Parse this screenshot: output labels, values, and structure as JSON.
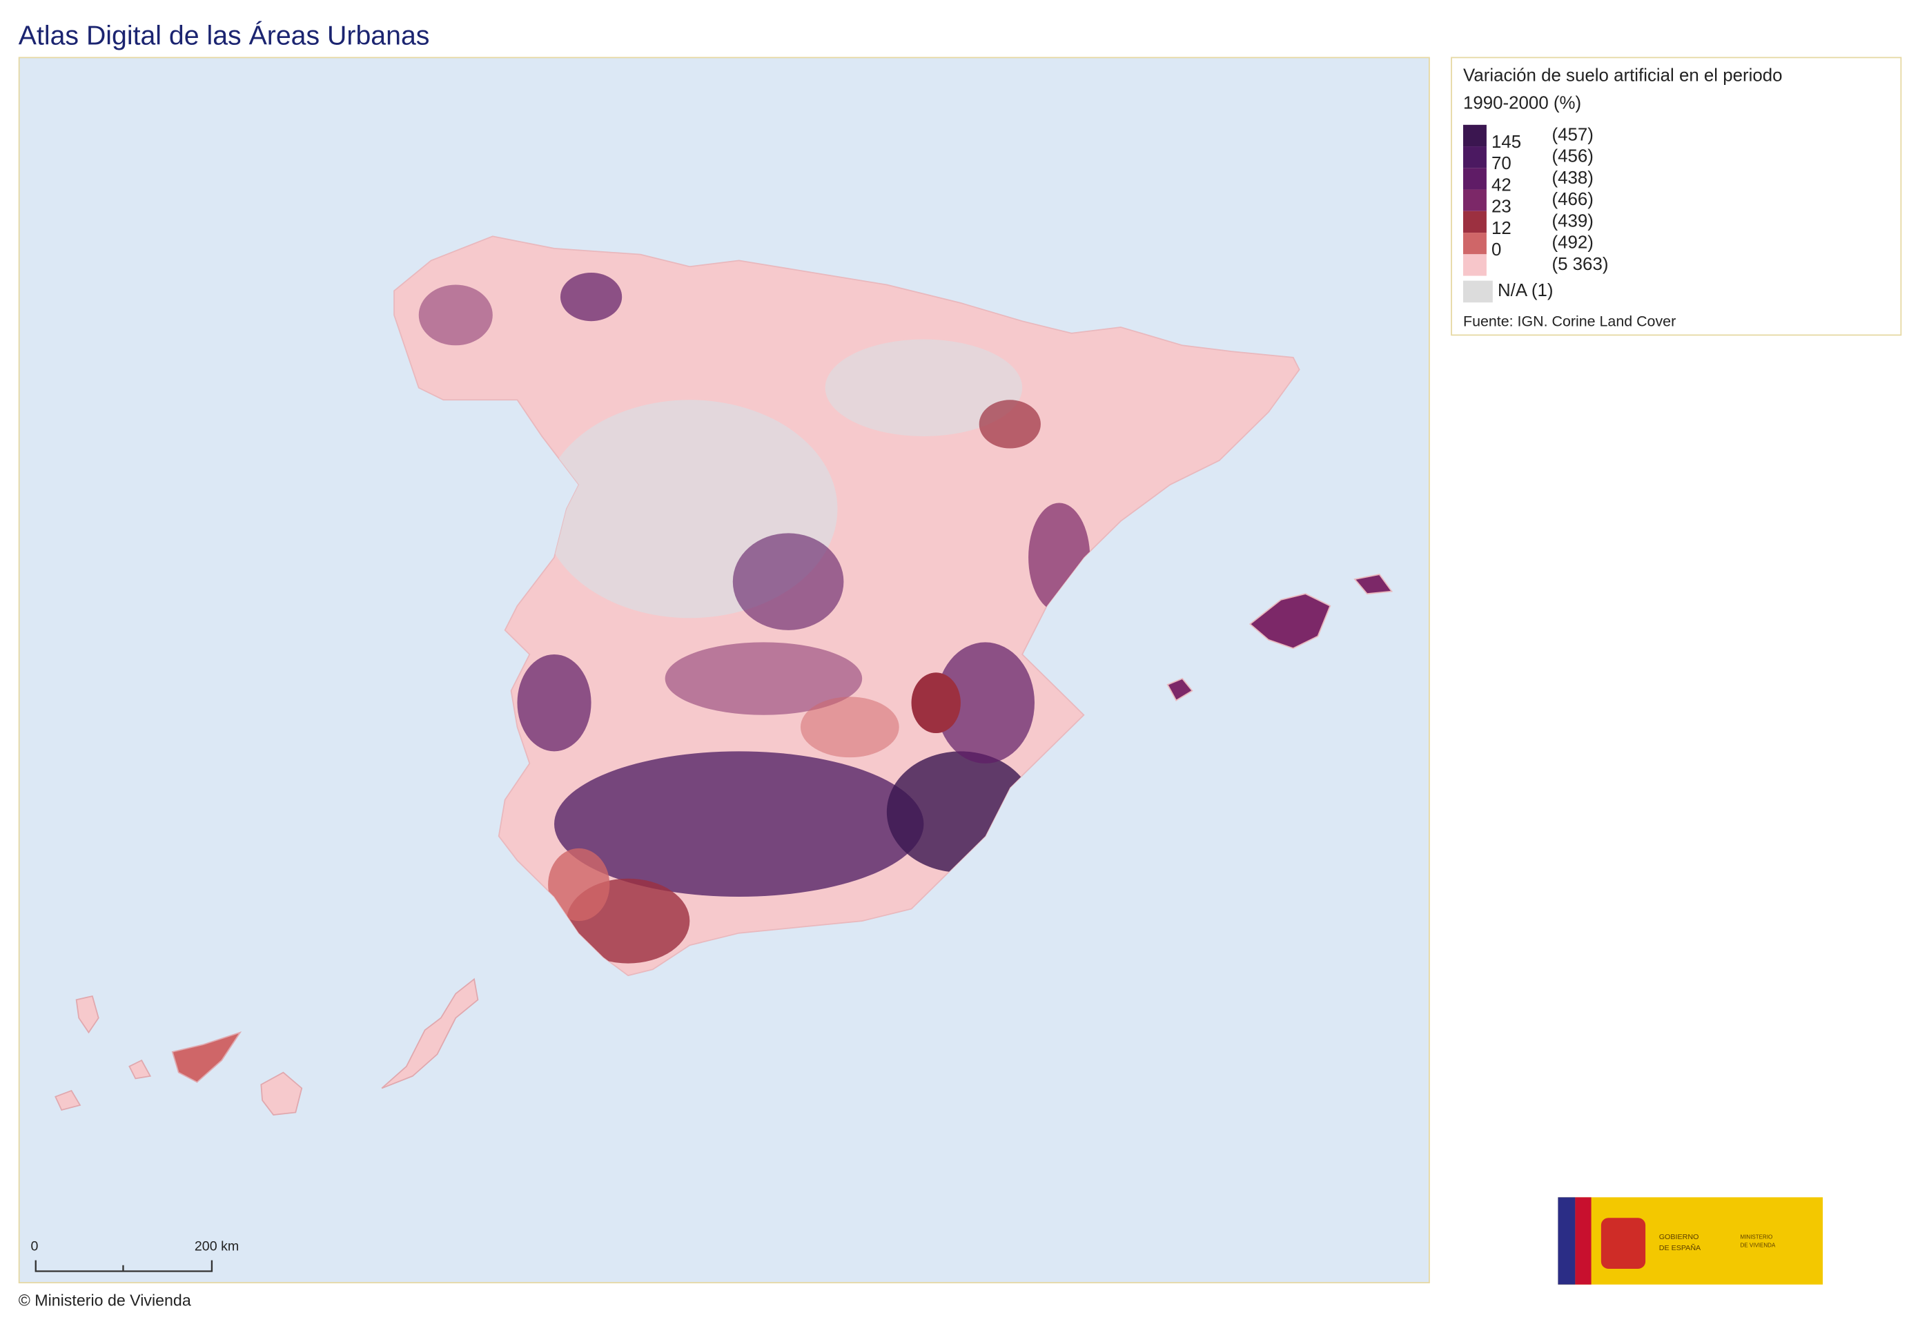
{
  "header": {
    "title": "Atlas Digital de las Áreas Urbanas"
  },
  "legend": {
    "title_lines": [
      "Variación de suelo artificial en el periodo",
      "1990-2000 (%)"
    ],
    "breaks": [
      "145",
      "70",
      "42",
      "23",
      "12",
      "0"
    ],
    "classes": [
      {
        "color": "#3b1650",
        "count": "(457)"
      },
      {
        "color": "#4b1961",
        "count": "(456)"
      },
      {
        "color": "#5f1c66",
        "count": "(438)"
      },
      {
        "color": "#7c2868",
        "count": "(466)"
      },
      {
        "color": "#9c3040",
        "count": "(439)"
      },
      {
        "color": "#cf6668",
        "count": "(492)"
      },
      {
        "color": "#f7c6ca",
        "count": "(5 363)"
      }
    ],
    "na": {
      "color": "#dcdcdc",
      "label": "N/A (1)"
    },
    "source": "Fuente: IGN. Corine Land Cover"
  },
  "scale_bar": {
    "start": "0",
    "end": "200 km"
  },
  "footer": {
    "copyright": "© Ministerio de Vivienda"
  },
  "logo": {
    "government": [
      "GOBIERNO",
      "DE ESPAÑA"
    ],
    "ministry": [
      "MINISTERIO",
      "DE VIVIENDA"
    ]
  }
}
